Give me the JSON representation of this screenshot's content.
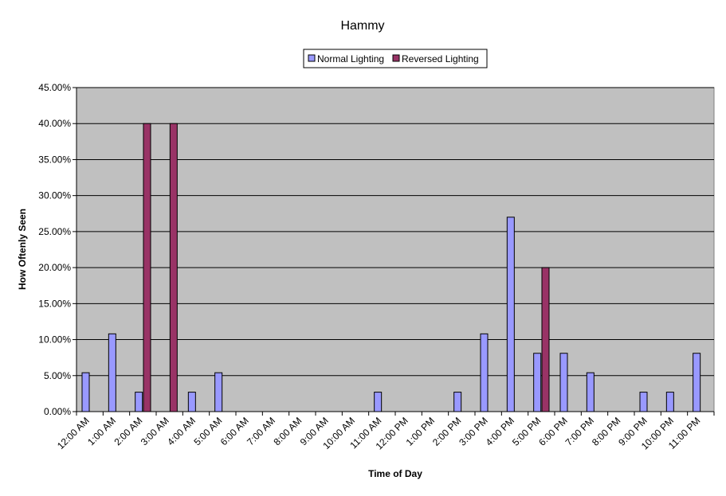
{
  "chart_data": {
    "type": "bar",
    "title": "Hammy",
    "xlabel": "Time of Day",
    "ylabel": "How Oftenly Seen",
    "ylim": [
      0,
      0.45
    ],
    "yticks": [
      0,
      0.05,
      0.1,
      0.15,
      0.2,
      0.25,
      0.3,
      0.35,
      0.4,
      0.45
    ],
    "ytick_labels": [
      "0.00%",
      "5.00%",
      "10.00%",
      "15.00%",
      "20.00%",
      "25.00%",
      "30.00%",
      "35.00%",
      "40.00%",
      "45.00%"
    ],
    "grid": true,
    "legend_position": "top-center",
    "categories": [
      "12:00 AM",
      "1:00 AM",
      "2:00 AM",
      "3:00 AM",
      "4:00 AM",
      "5:00 AM",
      "6:00 AM",
      "7:00 AM",
      "8:00 AM",
      "9:00 AM",
      "10:00 AM",
      "11:00 AM",
      "12:00 PM",
      "1:00 PM",
      "2:00 PM",
      "3:00 PM",
      "4:00 PM",
      "5:00 PM",
      "6:00 PM",
      "7:00 PM",
      "8:00 PM",
      "9:00 PM",
      "10:00 PM",
      "11:00 PM"
    ],
    "series": [
      {
        "name": "Normal Lighting",
        "color": "#9999ff",
        "values": [
          0.054,
          0.108,
          0.027,
          0,
          0.027,
          0.054,
          0,
          0,
          0,
          0,
          0,
          0.027,
          0,
          0,
          0.027,
          0.108,
          0.27,
          0.081,
          0.081,
          0.054,
          0,
          0.027,
          0.027,
          0.081
        ]
      },
      {
        "name": "Reversed Lighting",
        "color": "#993366",
        "values": [
          0,
          0,
          0.4,
          0.4,
          0,
          0,
          0,
          0,
          0,
          0,
          0,
          0,
          0,
          0,
          0,
          0,
          0,
          0.2,
          0,
          0,
          0,
          0,
          0,
          0
        ]
      }
    ],
    "plot_background": "#c0c0c0"
  }
}
